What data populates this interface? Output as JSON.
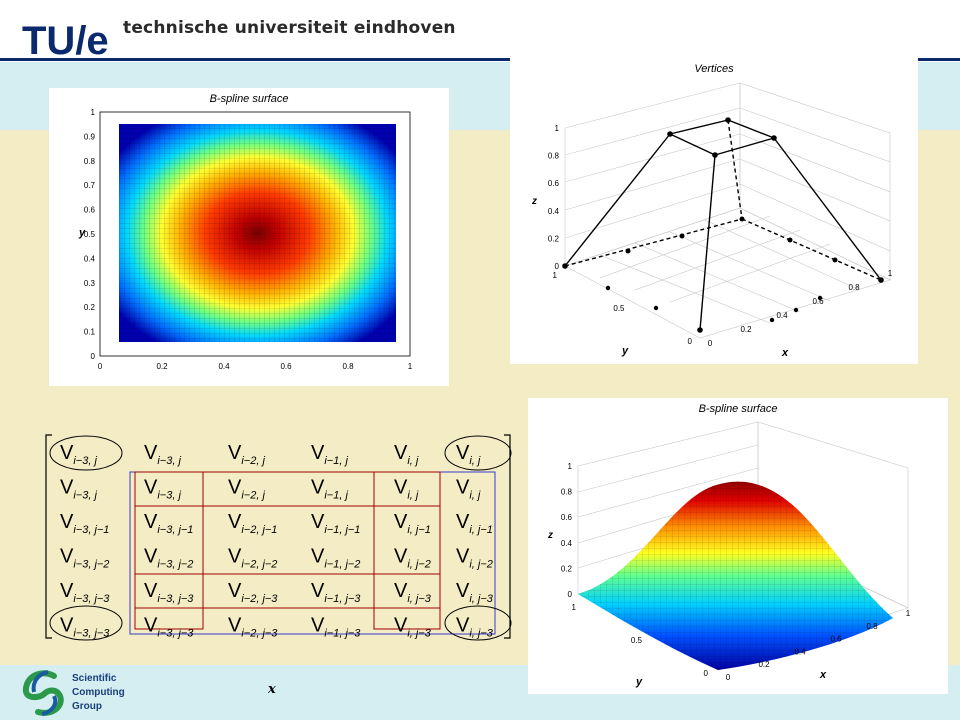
{
  "header": {
    "logo_text": "TU/e",
    "university_name": "technische universiteit eindhoven"
  },
  "panels": {
    "heatmap": {
      "title": "B-spline surface",
      "ylabel": "y",
      "xticks": [
        "0",
        "0.2",
        "0.4",
        "0.6",
        "0.8",
        "1"
      ],
      "yticks": [
        "0",
        "0.1",
        "0.2",
        "0.3",
        "0.4",
        "0.5",
        "0.6",
        "0.7",
        "0.8",
        "0.9",
        "1"
      ]
    },
    "vertices": {
      "title": "Vertices",
      "xlabel": "x",
      "ylabel": "y",
      "zlabel": "z",
      "zticks": [
        "0",
        "0.2",
        "0.4",
        "0.6",
        "0.8",
        "1"
      ],
      "xticks": [
        "0",
        "0.2",
        "0.4",
        "0.6",
        "0.8",
        "1"
      ],
      "yticks": [
        "0",
        "0.5",
        "1"
      ]
    },
    "surface": {
      "title": "B-spline surface",
      "xlabel": "x",
      "ylabel": "y",
      "zlabel": "z",
      "zticks": [
        "0",
        "0.2",
        "0.4",
        "0.6",
        "0.8",
        "1"
      ],
      "xticks": [
        "0",
        "0.2",
        "0.4",
        "0.6",
        "0.8",
        "1"
      ],
      "yticks": [
        "0",
        "0.5",
        "1"
      ]
    },
    "matrix": {
      "symbol": "V",
      "col_subscripts": [
        "i−3, j",
        "i−3, j",
        "i−2, j",
        "i−1, j",
        "i, j",
        "i, j"
      ],
      "rows": [
        [
          "i−3, j",
          "i−3, j",
          "i−2, j",
          "i−1, j",
          "i, j",
          "i, j"
        ],
        [
          "i−3, j",
          "i−3, j",
          "i−2, j",
          "i−1, j",
          "i, j",
          "i, j"
        ],
        [
          "i−3, j−1",
          "i−3, j−1",
          "i−2, j−1",
          "i−1, j−1",
          "i, j−1",
          "i, j−1"
        ],
        [
          "i−3, j−2",
          "i−3, j−2",
          "i−2, j−2",
          "i−1, j−2",
          "i, j−2",
          "i, j−2"
        ],
        [
          "i−3, j−3",
          "i−3, j−3",
          "i−2, j−3",
          "i−1, j−3",
          "i, j−3",
          "i, j−3"
        ],
        [
          "i−3, j−3",
          "i−3, j−3",
          "i−2, j−3",
          "i−1, j−3",
          "i, j−3",
          "i, j−3"
        ]
      ]
    }
  },
  "footer": {
    "group_lines": [
      "Scientific",
      "Computing",
      "Group"
    ],
    "axis_label": "x"
  }
}
